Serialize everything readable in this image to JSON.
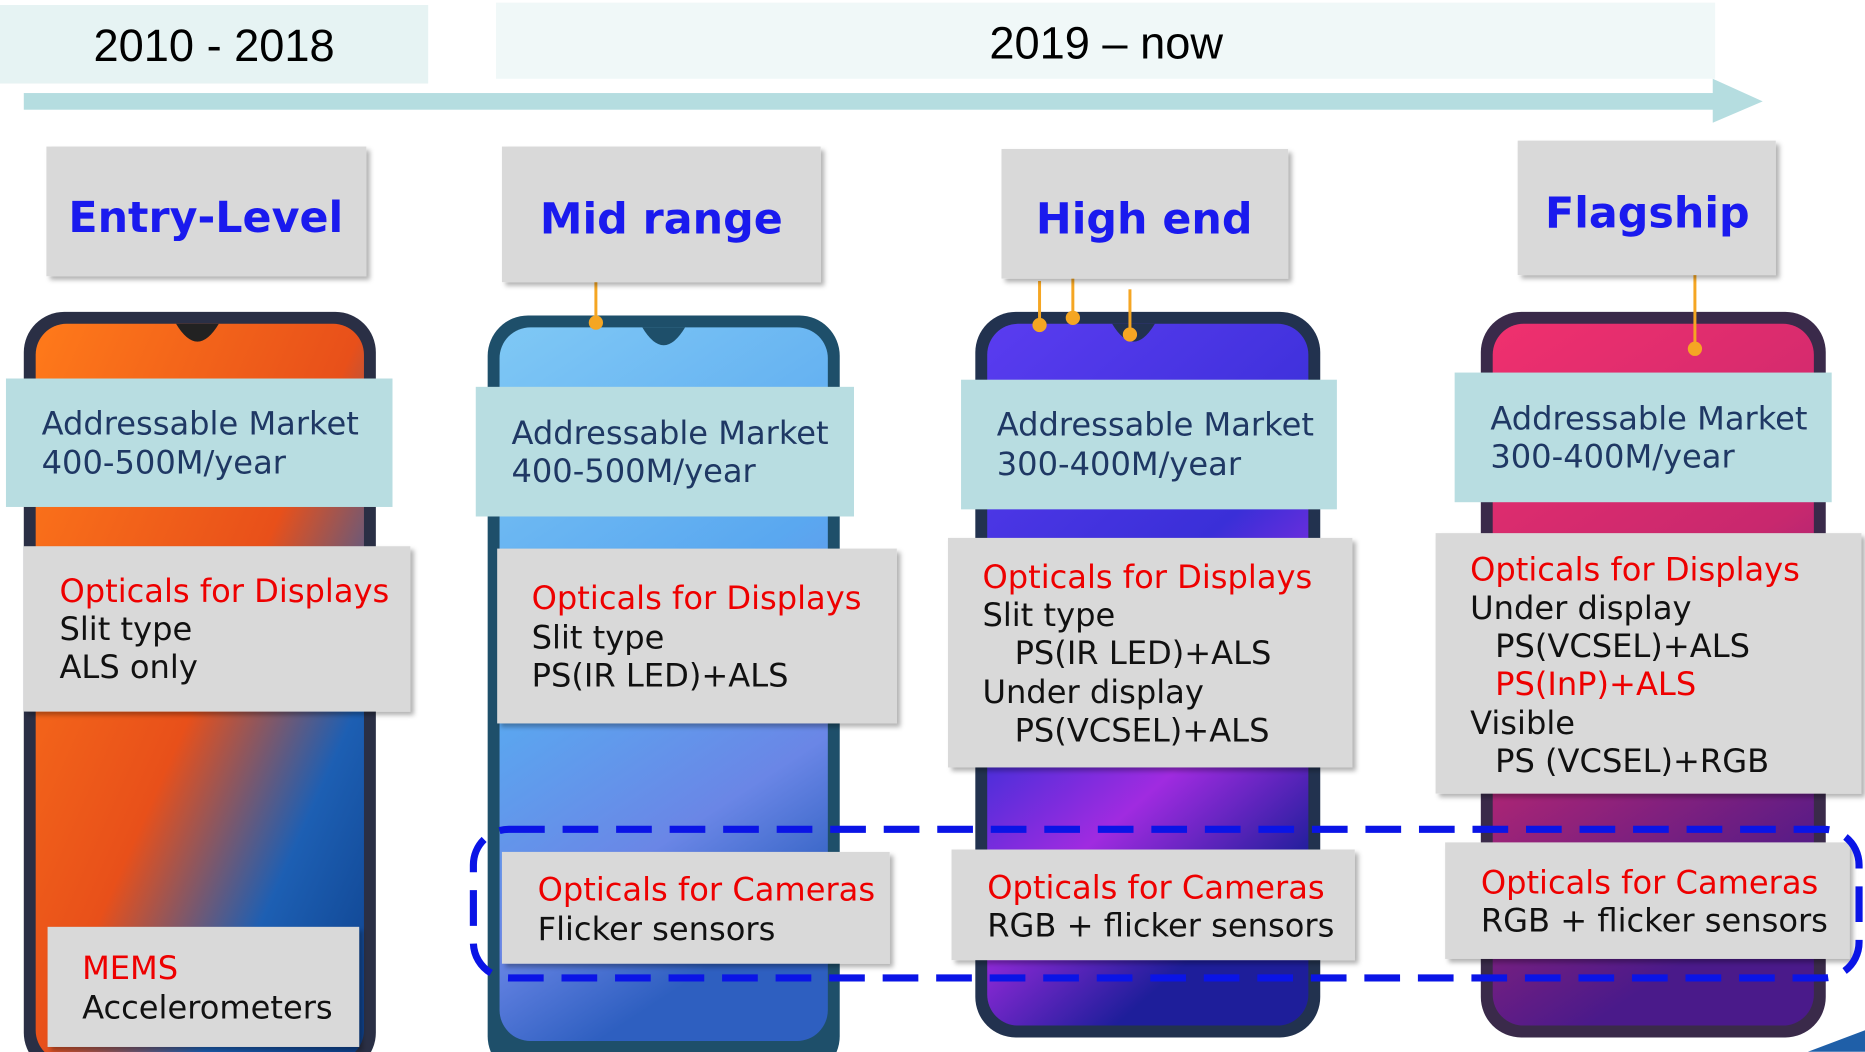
{
  "periods": [
    "2010 - 2018",
    "2019 – now"
  ],
  "columns": [
    {
      "title": "Entry-Level",
      "market": [
        "Addressable Market",
        "400-500M/year"
      ],
      "optics": {
        "heading": "Opticals for Displays",
        "lines": [
          "Slit type",
          "ALS only"
        ]
      },
      "mems": {
        "heading": "MEMS",
        "lines": [
          "Accelerometers"
        ]
      }
    },
    {
      "title": "Mid range",
      "market": [
        "Addressable Market",
        "400-500M/year"
      ],
      "optics": {
        "heading": "Opticals for Displays",
        "lines": [
          "Slit type",
          "PS(IR LED)+ALS"
        ]
      },
      "cameras": {
        "heading": "Opticals for Cameras",
        "lines": [
          "Flicker sensors"
        ]
      }
    },
    {
      "title": "High end",
      "market": [
        "Addressable Market",
        "300-400M/year"
      ],
      "optics": {
        "heading": "Opticals for Displays",
        "lines": [
          "Slit type",
          "PS(IR LED)+ALS",
          "Under display",
          "PS(VCSEL)+ALS"
        ]
      },
      "cameras": {
        "heading": "Opticals for Cameras",
        "lines": [
          "RGB + flicker sensors"
        ]
      }
    },
    {
      "title": "Flagship",
      "market": [
        "Addressable Market",
        "300-400M/year"
      ],
      "optics": {
        "heading": "Opticals for Displays",
        "lines": [
          "Under display",
          "PS(VCSEL)+ALS",
          "PS(InP)+ALS",
          "Visible",
          "PS (VCSEL)+RGB"
        ]
      },
      "cameras": {
        "heading": "Opticals for Cameras",
        "lines": [
          "RGB + flicker sensors"
        ]
      }
    }
  ]
}
